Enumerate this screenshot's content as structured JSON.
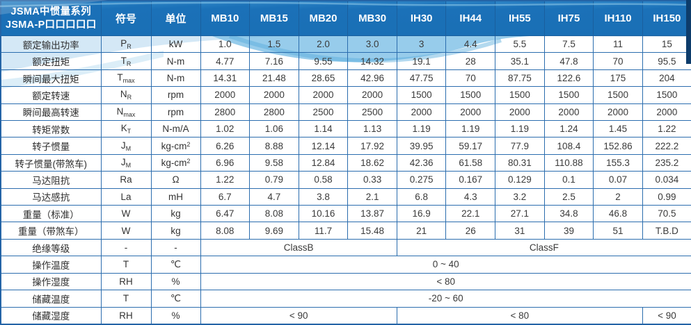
{
  "header": {
    "title_line1": "JSMA中惯量系列",
    "title_line2": "JSMA-P口口口口口",
    "symbol_col": "符号",
    "unit_col": "单位",
    "models": [
      "MB10",
      "MB15",
      "MB20",
      "MB30",
      "IH30",
      "IH44",
      "IH55",
      "IH75",
      "IH110",
      "IH150"
    ]
  },
  "rows": [
    {
      "label": "额定输出功率",
      "symbol": "P",
      "symbol_sub": "R",
      "unit": "kW",
      "values": [
        "1.0",
        "1.5",
        "2.0",
        "3.0",
        "3",
        "4.4",
        "5.5",
        "7.5",
        "11",
        "15"
      ]
    },
    {
      "label": "额定扭矩",
      "symbol": "T",
      "symbol_sub": "R",
      "unit": "N-m",
      "values": [
        "4.77",
        "7.16",
        "9.55",
        "14.32",
        "19.1",
        "28",
        "35.1",
        "47.8",
        "70",
        "95.5"
      ]
    },
    {
      "label": "瞬间最大扭矩",
      "symbol": "T",
      "symbol_sub": "max",
      "unit": "N-m",
      "values": [
        "14.31",
        "21.48",
        "28.65",
        "42.96",
        "47.75",
        "70",
        "87.75",
        "122.6",
        "175",
        "204"
      ]
    },
    {
      "label": "额定转速",
      "symbol": "N",
      "symbol_sub": "R",
      "unit": "rpm",
      "values": [
        "2000",
        "2000",
        "2000",
        "2000",
        "1500",
        "1500",
        "1500",
        "1500",
        "1500",
        "1500"
      ]
    },
    {
      "label": "瞬间最高转速",
      "symbol": "N",
      "symbol_sub": "max",
      "unit": "rpm",
      "values": [
        "2800",
        "2800",
        "2500",
        "2500",
        "2000",
        "2000",
        "2000",
        "2000",
        "2000",
        "2000"
      ]
    },
    {
      "label": "转矩常数",
      "symbol": "K",
      "symbol_sub": "T",
      "unit": "N-m/A",
      "values": [
        "1.02",
        "1.06",
        "1.14",
        "1.13",
        "1.19",
        "1.19",
        "1.19",
        "1.24",
        "1.45",
        "1.22"
      ]
    },
    {
      "label": "转子惯量",
      "symbol": "J",
      "symbol_sub": "M",
      "unit": "kg-cm",
      "unit_sup": "2",
      "values": [
        "6.26",
        "8.88",
        "12.14",
        "17.92",
        "39.95",
        "59.17",
        "77.9",
        "108.4",
        "152.86",
        "222.2"
      ]
    },
    {
      "label": "转子惯量(带煞车)",
      "symbol": "J",
      "symbol_sub": "M",
      "unit": "kg-cm",
      "unit_sup": "2",
      "values": [
        "6.96",
        "9.58",
        "12.84",
        "18.62",
        "42.36",
        "61.58",
        "80.31",
        "110.88",
        "155.3",
        "235.2"
      ]
    },
    {
      "label": "马达阻抗",
      "symbol": "Ra",
      "unit": "Ω",
      "values": [
        "1.22",
        "0.79",
        "0.58",
        "0.33",
        "0.275",
        "0.167",
        "0.129",
        "0.1",
        "0.07",
        "0.034"
      ]
    },
    {
      "label": "马达感抗",
      "symbol": "La",
      "unit": "mH",
      "values": [
        "6.7",
        "4.7",
        "3.8",
        "2.1",
        "6.8",
        "4.3",
        "3.2",
        "2.5",
        "2",
        "0.99"
      ]
    },
    {
      "label": "重量（标准）",
      "symbol": "W",
      "unit": "kg",
      "values": [
        "6.47",
        "8.08",
        "10.16",
        "13.87",
        "16.9",
        "22.1",
        "27.1",
        "34.8",
        "46.8",
        "70.5"
      ]
    },
    {
      "label": "重量（带煞车）",
      "symbol": "W",
      "unit": "kg",
      "values": [
        "8.08",
        "9.69",
        "11.7",
        "15.48",
        "21",
        "26",
        "31",
        "39",
        "51",
        "T.B.D"
      ]
    },
    {
      "label": "绝缘等级",
      "symbol": "-",
      "unit": "-",
      "spans": [
        {
          "text": "ClassB",
          "cols": 4
        },
        {
          "text": "ClassF",
          "cols": 6
        }
      ]
    },
    {
      "label": "操作温度",
      "symbol": "T",
      "unit": "℃",
      "spans": [
        {
          "text": "0 ~ 40",
          "cols": 10
        }
      ]
    },
    {
      "label": "操作湿度",
      "symbol": "RH",
      "unit": "%",
      "spans": [
        {
          "text": "< 80",
          "cols": 10
        }
      ]
    },
    {
      "label": "储藏温度",
      "symbol": "T",
      "unit": "℃",
      "spans": [
        {
          "text": "-20 ~ 60",
          "cols": 10
        }
      ]
    },
    {
      "label": "储藏湿度",
      "symbol": "RH",
      "unit": "%",
      "spans": [
        {
          "text": "< 90",
          "cols": 4
        },
        {
          "text": "< 80",
          "cols": 5
        },
        {
          "text": "< 90",
          "cols": 1
        }
      ]
    }
  ],
  "colors": {
    "header_blue": "#1b71b8",
    "border_blue": "#2b6dae",
    "wave_light": "#cfe6f5",
    "wave_mid": "#7dbfe6",
    "navy_strip": "#0d3c6b",
    "body_text": "#3a3a3a",
    "header_text": "#ffffff"
  }
}
